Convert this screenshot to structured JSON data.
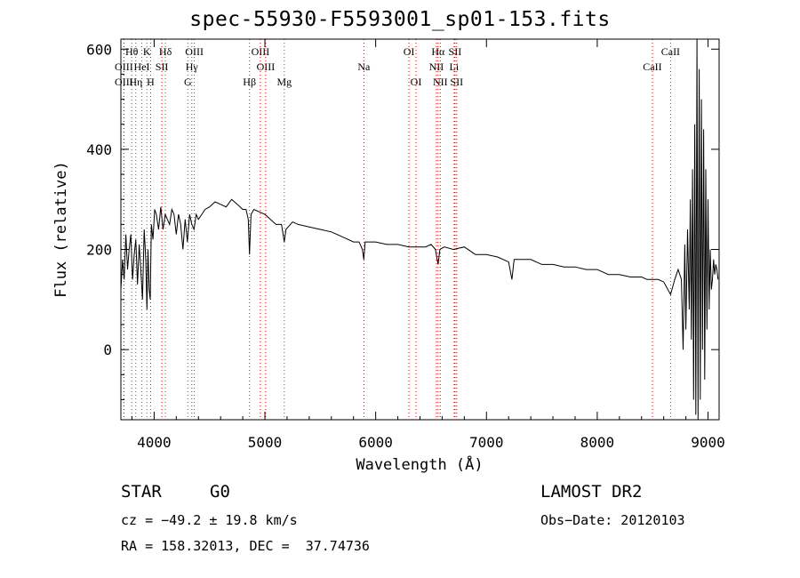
{
  "title": "spec-55930-F5593001_sp01-153.fits",
  "info": {
    "class": "STAR",
    "subclass": "G0",
    "survey": "LAMOST DR2",
    "cz": "cz = −49.2 ± 19.8 km/s",
    "obs_date": "Obs−Date: 20120103",
    "coords": "RA = 158.32013, DEC =  37.74736"
  },
  "chart_data": {
    "type": "line",
    "title": "spec-55930-F5593001_sp01-153.fits",
    "xlabel": "Wavelength (Å)",
    "ylabel": "Flux (relative)",
    "xlim": [
      3700,
      9100
    ],
    "ylim": [
      -140,
      620
    ],
    "xticks": [
      4000,
      5000,
      6000,
      7000,
      8000,
      9000
    ],
    "yticks": [
      0,
      200,
      400,
      600
    ],
    "grid": false,
    "line_color": "#000000",
    "marker_color_red": "#d00000",
    "marker_color_gray": "#555555",
    "lines": [
      {
        "label": "Hθ",
        "wave": 3798,
        "row": 1,
        "color": "gray"
      },
      {
        "label": "K",
        "wave": 3934,
        "row": 1,
        "color": "gray"
      },
      {
        "label": "Hδ",
        "wave": 4102,
        "row": 1,
        "color": "gray"
      },
      {
        "label": "OIII",
        "wave": 4363,
        "row": 1,
        "color": "gray"
      },
      {
        "label": "OIII",
        "wave": 4959,
        "row": 1,
        "color": "red"
      },
      {
        "label": "OI",
        "wave": 6300,
        "row": 1,
        "color": "red"
      },
      {
        "label": "Hα",
        "wave": 6563,
        "row": 1,
        "color": "red"
      },
      {
        "label": "SII",
        "wave": 6716,
        "row": 1,
        "color": "red"
      },
      {
        "label": "CaII",
        "wave": 8662,
        "row": 1,
        "color": "gray"
      },
      {
        "label": "OIII",
        "wave": 3727,
        "row": 2,
        "color": "red"
      },
      {
        "label": "HeI",
        "wave": 3889,
        "row": 2,
        "color": "gray"
      },
      {
        "label": "SII",
        "wave": 4070,
        "row": 2,
        "color": "red"
      },
      {
        "label": "Hγ",
        "wave": 4340,
        "row": 2,
        "color": "gray"
      },
      {
        "label": "OIII",
        "wave": 5007,
        "row": 2,
        "color": "red"
      },
      {
        "label": "Na",
        "wave": 5893,
        "row": 2,
        "color": "red"
      },
      {
        "label": "NII",
        "wave": 6548,
        "row": 2,
        "color": "red"
      },
      {
        "label": "Li",
        "wave": 6708,
        "row": 2,
        "color": "red"
      },
      {
        "label": "CaII",
        "wave": 8498,
        "row": 2,
        "color": "red"
      },
      {
        "label": "OIII",
        "wave": 3727,
        "row": 3,
        "color": "gray"
      },
      {
        "label": "Hη",
        "wave": 3835,
        "row": 3,
        "color": "gray"
      },
      {
        "label": "H",
        "wave": 3968,
        "row": 3,
        "color": "gray"
      },
      {
        "label": "G",
        "wave": 4304,
        "row": 3,
        "color": "gray"
      },
      {
        "label": "Hβ",
        "wave": 4861,
        "row": 3,
        "color": "gray"
      },
      {
        "label": "Mg",
        "wave": 5175,
        "row": 3,
        "color": "gray"
      },
      {
        "label": "OI",
        "wave": 6364,
        "row": 3,
        "color": "red"
      },
      {
        "label": "NII",
        "wave": 6583,
        "row": 3,
        "color": "red"
      },
      {
        "label": "SII",
        "wave": 6731,
        "row": 3,
        "color": "red"
      }
    ],
    "series": [
      {
        "x": [
          3700,
          3715,
          3730,
          3745,
          3760,
          3775,
          3790,
          3805,
          3820,
          3835,
          3850,
          3865,
          3880,
          3895,
          3910,
          3925,
          3935,
          3945,
          3955,
          3965,
          3975,
          3990,
          4005,
          4020,
          4040,
          4060,
          4080,
          4100,
          4120,
          4140,
          4160,
          4180,
          4200,
          4220,
          4240,
          4260,
          4280,
          4300,
          4320,
          4340,
          4360,
          4380,
          4400,
          4430,
          4460,
          4500,
          4550,
          4600,
          4650,
          4700,
          4750,
          4800,
          4830,
          4850,
          4861,
          4875,
          4900,
          4950,
          5000,
          5050,
          5100,
          5150,
          5175,
          5190,
          5250,
          5300,
          5400,
          5500,
          5600,
          5700,
          5800,
          5850,
          5880,
          5893,
          5905,
          5950,
          6000,
          6100,
          6200,
          6300,
          6400,
          6450,
          6500,
          6540,
          6563,
          6580,
          6620,
          6700,
          6800,
          6900,
          7000,
          7100,
          7200,
          7230,
          7250,
          7300,
          7400,
          7500,
          7600,
          7700,
          7800,
          7900,
          8000,
          8100,
          8200,
          8300,
          8400,
          8450,
          8500,
          8550,
          8600,
          8662,
          8700,
          8730,
          8760,
          8775,
          8790,
          8800,
          8815,
          8830,
          8840,
          8850,
          8860,
          8870,
          8880,
          8890,
          8900,
          8910,
          8920,
          8930,
          8940,
          8950,
          8960,
          8970,
          8980,
          8990,
          9000,
          9010,
          9020,
          9030,
          9040,
          9050,
          9060,
          9070,
          9080,
          9090
        ],
        "y": [
          120,
          180,
          140,
          230,
          160,
          200,
          230,
          140,
          190,
          220,
          130,
          210,
          160,
          100,
          240,
          180,
          80,
          200,
          120,
          100,
          250,
          220,
          280,
          270,
          240,
          285,
          240,
          270,
          260,
          250,
          280,
          270,
          230,
          270,
          250,
          200,
          260,
          215,
          270,
          250,
          240,
          270,
          260,
          270,
          280,
          285,
          295,
          290,
          285,
          300,
          290,
          280,
          280,
          260,
          190,
          270,
          280,
          275,
          270,
          260,
          250,
          250,
          215,
          240,
          255,
          250,
          245,
          240,
          235,
          225,
          215,
          215,
          200,
          180,
          215,
          215,
          215,
          210,
          210,
          205,
          205,
          205,
          210,
          200,
          170,
          200,
          205,
          200,
          205,
          190,
          190,
          185,
          175,
          140,
          180,
          180,
          180,
          170,
          170,
          165,
          165,
          160,
          160,
          150,
          150,
          145,
          145,
          140,
          140,
          140,
          135,
          110,
          140,
          160,
          140,
          0,
          210,
          40,
          240,
          80,
          300,
          20,
          360,
          -100,
          450,
          -130,
          620,
          -140,
          560,
          -100,
          500,
          0,
          440,
          -60,
          360,
          40,
          300,
          80,
          200,
          120,
          140,
          180,
          150,
          170,
          160,
          140
        ]
      }
    ]
  }
}
